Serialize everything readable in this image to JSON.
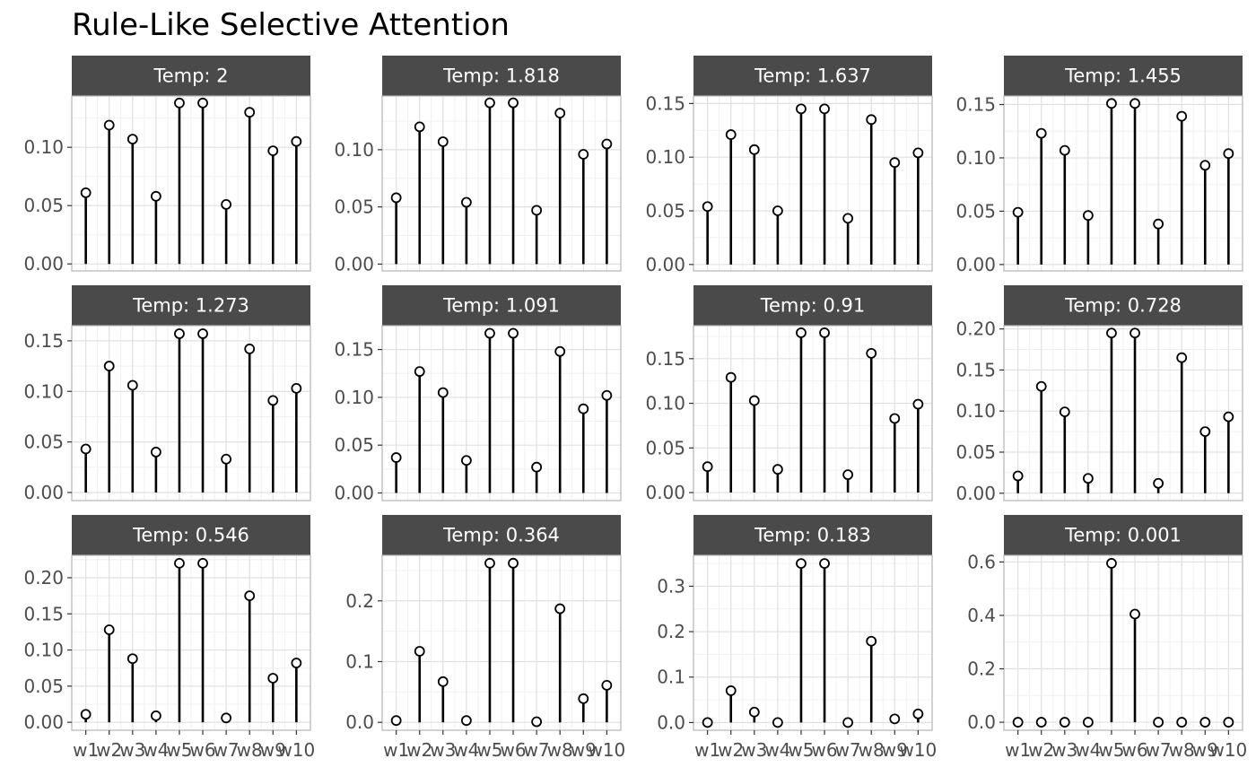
{
  "colors": {
    "strip_background": "#4a4a4a",
    "strip_text": "#ffffff",
    "panel_border": "#b3b3b3",
    "grid_major": "#e0e0e0",
    "grid_minor": "#f0f0f0",
    "stem": "#000000",
    "point_fill": "#ffffff",
    "tick_text": "#4d4d4d"
  },
  "chart_data": {
    "type": "lollipop",
    "title": "Rule-Like Selective Attention",
    "xlabel": "",
    "ylabel": "",
    "grid": true,
    "categories": [
      "w1",
      "w2",
      "w3",
      "w4",
      "w5",
      "w6",
      "w7",
      "w8",
      "w9",
      "w10"
    ],
    "panels": [
      {
        "label": "Temp: 2",
        "ylim": [
          -0.006,
          0.144
        ],
        "yticks": [
          0,
          0.05,
          0.1
        ],
        "yticklabels": [
          "0.00",
          "0.05",
          "0.10"
        ],
        "values": [
          0.061,
          0.119,
          0.107,
          0.058,
          0.138,
          0.138,
          0.051,
          0.13,
          0.097,
          0.105
        ]
      },
      {
        "label": "Temp: 1.818",
        "ylim": [
          -0.006,
          0.147
        ],
        "yticks": [
          0,
          0.05,
          0.1
        ],
        "yticklabels": [
          "0.00",
          "0.05",
          "0.10"
        ],
        "values": [
          0.058,
          0.12,
          0.107,
          0.054,
          0.141,
          0.141,
          0.047,
          0.132,
          0.096,
          0.105
        ]
      },
      {
        "label": "Temp: 1.637",
        "ylim": [
          -0.006,
          0.157
        ],
        "yticks": [
          0,
          0.05,
          0.1,
          0.15
        ],
        "yticklabels": [
          "0.00",
          "0.05",
          "0.10",
          "0.15"
        ],
        "values": [
          0.054,
          0.121,
          0.107,
          0.05,
          0.145,
          0.145,
          0.043,
          0.135,
          0.095,
          0.104
        ]
      },
      {
        "label": "Temp: 1.455",
        "ylim": [
          -0.006,
          0.158
        ],
        "yticks": [
          0,
          0.05,
          0.1,
          0.15
        ],
        "yticklabels": [
          "0.00",
          "0.05",
          "0.10",
          "0.15"
        ],
        "values": [
          0.049,
          0.123,
          0.107,
          0.046,
          0.151,
          0.151,
          0.038,
          0.139,
          0.093,
          0.104
        ]
      },
      {
        "label": "Temp: 1.273",
        "ylim": [
          -0.008,
          0.165
        ],
        "yticks": [
          0,
          0.05,
          0.1,
          0.15
        ],
        "yticklabels": [
          "0.00",
          "0.05",
          "0.10",
          "0.15"
        ],
        "values": [
          0.043,
          0.125,
          0.106,
          0.04,
          0.157,
          0.157,
          0.033,
          0.142,
          0.091,
          0.103
        ]
      },
      {
        "label": "Temp: 1.091",
        "ylim": [
          -0.008,
          0.175
        ],
        "yticks": [
          0,
          0.05,
          0.1,
          0.15
        ],
        "yticklabels": [
          "0.00",
          "0.05",
          "0.10",
          "0.15"
        ],
        "values": [
          0.037,
          0.127,
          0.105,
          0.034,
          0.167,
          0.167,
          0.027,
          0.148,
          0.088,
          0.102
        ]
      },
      {
        "label": "Temp: 0.91",
        "ylim": [
          -0.009,
          0.187
        ],
        "yticks": [
          0,
          0.05,
          0.1,
          0.15
        ],
        "yticklabels": [
          "0.00",
          "0.05",
          "0.10",
          "0.15"
        ],
        "values": [
          0.029,
          0.129,
          0.103,
          0.026,
          0.179,
          0.179,
          0.02,
          0.156,
          0.083,
          0.099
        ]
      },
      {
        "label": "Temp: 0.728",
        "ylim": [
          -0.009,
          0.204
        ],
        "yticks": [
          0,
          0.05,
          0.1,
          0.15,
          0.2
        ],
        "yticklabels": [
          "0.00",
          "0.05",
          "0.10",
          "0.15",
          "0.20"
        ],
        "values": [
          0.021,
          0.13,
          0.099,
          0.018,
          0.195,
          0.195,
          0.012,
          0.165,
          0.075,
          0.093
        ]
      },
      {
        "label": "Temp: 0.546",
        "ylim": [
          -0.011,
          0.231
        ],
        "yticks": [
          0,
          0.05,
          0.1,
          0.15,
          0.2
        ],
        "yticklabels": [
          "0.00",
          "0.05",
          "0.10",
          "0.15",
          "0.20"
        ],
        "values": [
          0.011,
          0.128,
          0.088,
          0.009,
          0.22,
          0.22,
          0.006,
          0.175,
          0.061,
          0.082
        ]
      },
      {
        "label": "Temp: 0.364",
        "ylim": [
          -0.013,
          0.275
        ],
        "yticks": [
          0,
          0.1,
          0.2
        ],
        "yticklabels": [
          "0.0",
          "0.1",
          "0.2"
        ],
        "values": [
          0.003,
          0.117,
          0.067,
          0.003,
          0.262,
          0.262,
          0.001,
          0.187,
          0.039,
          0.061
        ]
      },
      {
        "label": "Temp: 0.183",
        "ylim": [
          -0.017,
          0.368
        ],
        "yticks": [
          0,
          0.1,
          0.2,
          0.3
        ],
        "yticklabels": [
          "0.0",
          "0.1",
          "0.2",
          "0.3"
        ],
        "values": [
          0.0,
          0.07,
          0.023,
          0.0,
          0.35,
          0.35,
          0.0,
          0.179,
          0.008,
          0.019
        ]
      },
      {
        "label": "Temp: 0.001",
        "ylim": [
          -0.03,
          0.625
        ],
        "yticks": [
          0,
          0.2,
          0.4,
          0.6
        ],
        "yticklabels": [
          "0.0",
          "0.2",
          "0.4",
          "0.6"
        ],
        "values": [
          0.0,
          0.0,
          0.0,
          0.0,
          0.595,
          0.405,
          0.0,
          0.0,
          0.0,
          0.0
        ]
      }
    ]
  }
}
